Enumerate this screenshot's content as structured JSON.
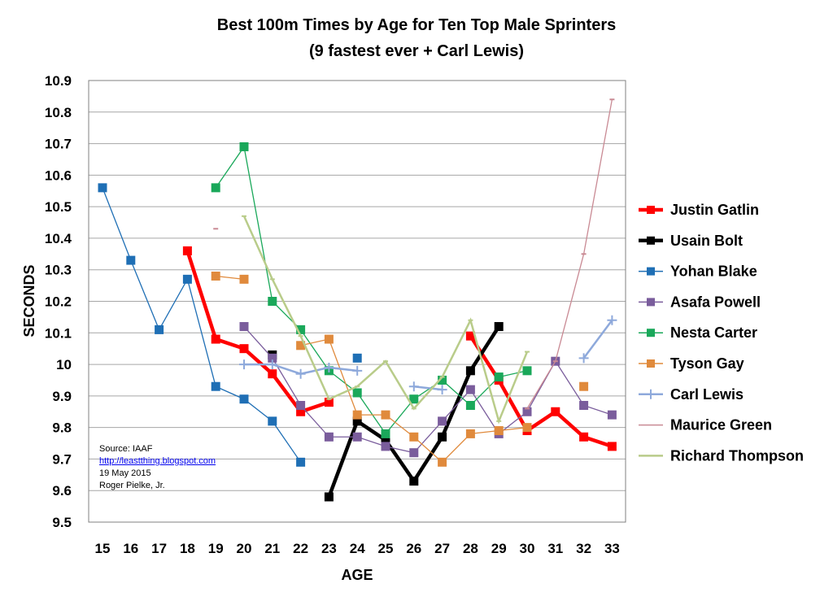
{
  "chart_data": {
    "type": "line",
    "title": "Best 100m Times by Age for Ten Top Male Sprinters",
    "subtitle": "(9 fastest ever + Carl Lewis)",
    "xlabel": "AGE",
    "ylabel": "SECONDS",
    "x": [
      15,
      16,
      17,
      18,
      19,
      20,
      21,
      22,
      23,
      24,
      25,
      26,
      27,
      28,
      29,
      30,
      31,
      32,
      33
    ],
    "xlim": [
      15,
      33
    ],
    "ylim": [
      9.5,
      10.9
    ],
    "yticks": [
      9.5,
      9.6,
      9.7,
      9.8,
      9.9,
      10,
      10.1,
      10.2,
      10.3,
      10.4,
      10.5,
      10.6,
      10.7,
      10.8,
      10.9
    ],
    "ytick_labels": [
      "9.5",
      "9.6",
      "9.7",
      "9.8",
      "9.9",
      "10",
      "10.1",
      "10.2",
      "10.3",
      "10.4",
      "10.5",
      "10.6",
      "10.7",
      "10.8",
      "10.9"
    ],
    "grid": "horizontal",
    "legend": "right",
    "series": [
      {
        "name": "Justin Gatlin",
        "color": "#ff0000",
        "marker": "square",
        "values": [
          null,
          null,
          null,
          10.36,
          10.08,
          10.05,
          9.97,
          9.85,
          9.88,
          null,
          null,
          null,
          null,
          10.09,
          9.95,
          9.79,
          9.85,
          9.77,
          9.74
        ]
      },
      {
        "name": "Usain Bolt",
        "color": "#000000",
        "marker": "square",
        "values": [
          null,
          null,
          null,
          null,
          null,
          null,
          10.03,
          null,
          9.58,
          9.82,
          9.76,
          9.63,
          9.77,
          9.98,
          10.12,
          null,
          null,
          null,
          null
        ]
      },
      {
        "name": "Yohan Blake",
        "color": "#1f6fb5",
        "marker": "square",
        "values": [
          10.56,
          10.33,
          10.11,
          10.27,
          9.93,
          9.89,
          9.82,
          9.69,
          null,
          10.02,
          null,
          null,
          null,
          null,
          null,
          null,
          null,
          null,
          null
        ]
      },
      {
        "name": "Asafa Powell",
        "color": "#7a5d9c",
        "marker": "square",
        "values": [
          null,
          null,
          null,
          null,
          null,
          10.12,
          10.02,
          9.87,
          9.77,
          9.77,
          9.74,
          9.72,
          9.82,
          9.92,
          9.78,
          9.85,
          10.01,
          9.87,
          9.84
        ]
      },
      {
        "name": "Nesta Carter",
        "color": "#1aa85a",
        "marker": "square",
        "values": [
          null,
          null,
          null,
          null,
          10.56,
          10.69,
          10.2,
          10.11,
          9.98,
          9.91,
          9.78,
          9.89,
          9.95,
          9.87,
          9.96,
          9.98,
          null,
          null,
          null
        ]
      },
      {
        "name": "Tyson Gay",
        "color": "#e08a3c",
        "marker": "square",
        "values": [
          null,
          null,
          null,
          null,
          10.28,
          10.27,
          null,
          10.06,
          10.08,
          9.84,
          9.84,
          9.77,
          9.69,
          9.78,
          9.79,
          9.8,
          null,
          9.93,
          null
        ]
      },
      {
        "name": "Carl Lewis",
        "color": "#8ea9db",
        "marker": "plus",
        "values": [
          null,
          null,
          null,
          null,
          null,
          10.0,
          10.0,
          9.97,
          9.99,
          9.98,
          null,
          9.93,
          9.92,
          null,
          null,
          null,
          null,
          10.02,
          10.14
        ]
      },
      {
        "name": "Maurice Green",
        "color": "#c98a94",
        "marker": "dash",
        "values": [
          null,
          null,
          null,
          null,
          10.43,
          null,
          null,
          null,
          null,
          null,
          null,
          null,
          null,
          null,
          null,
          9.86,
          10.01,
          10.35,
          10.84
        ]
      },
      {
        "name": "Richard Thompson",
        "color": "#b9cc8a",
        "marker": "dash",
        "values": [
          null,
          null,
          null,
          null,
          null,
          10.47,
          10.27,
          10.09,
          9.89,
          9.93,
          10.01,
          9.86,
          9.96,
          10.14,
          9.82,
          10.04,
          null,
          null,
          null
        ]
      }
    ],
    "annotations": {
      "source": "Source: IAAF",
      "link": "http://leastthing.blogspot.com",
      "date": "19 May 2015",
      "author": "Roger Pielke, Jr."
    }
  }
}
